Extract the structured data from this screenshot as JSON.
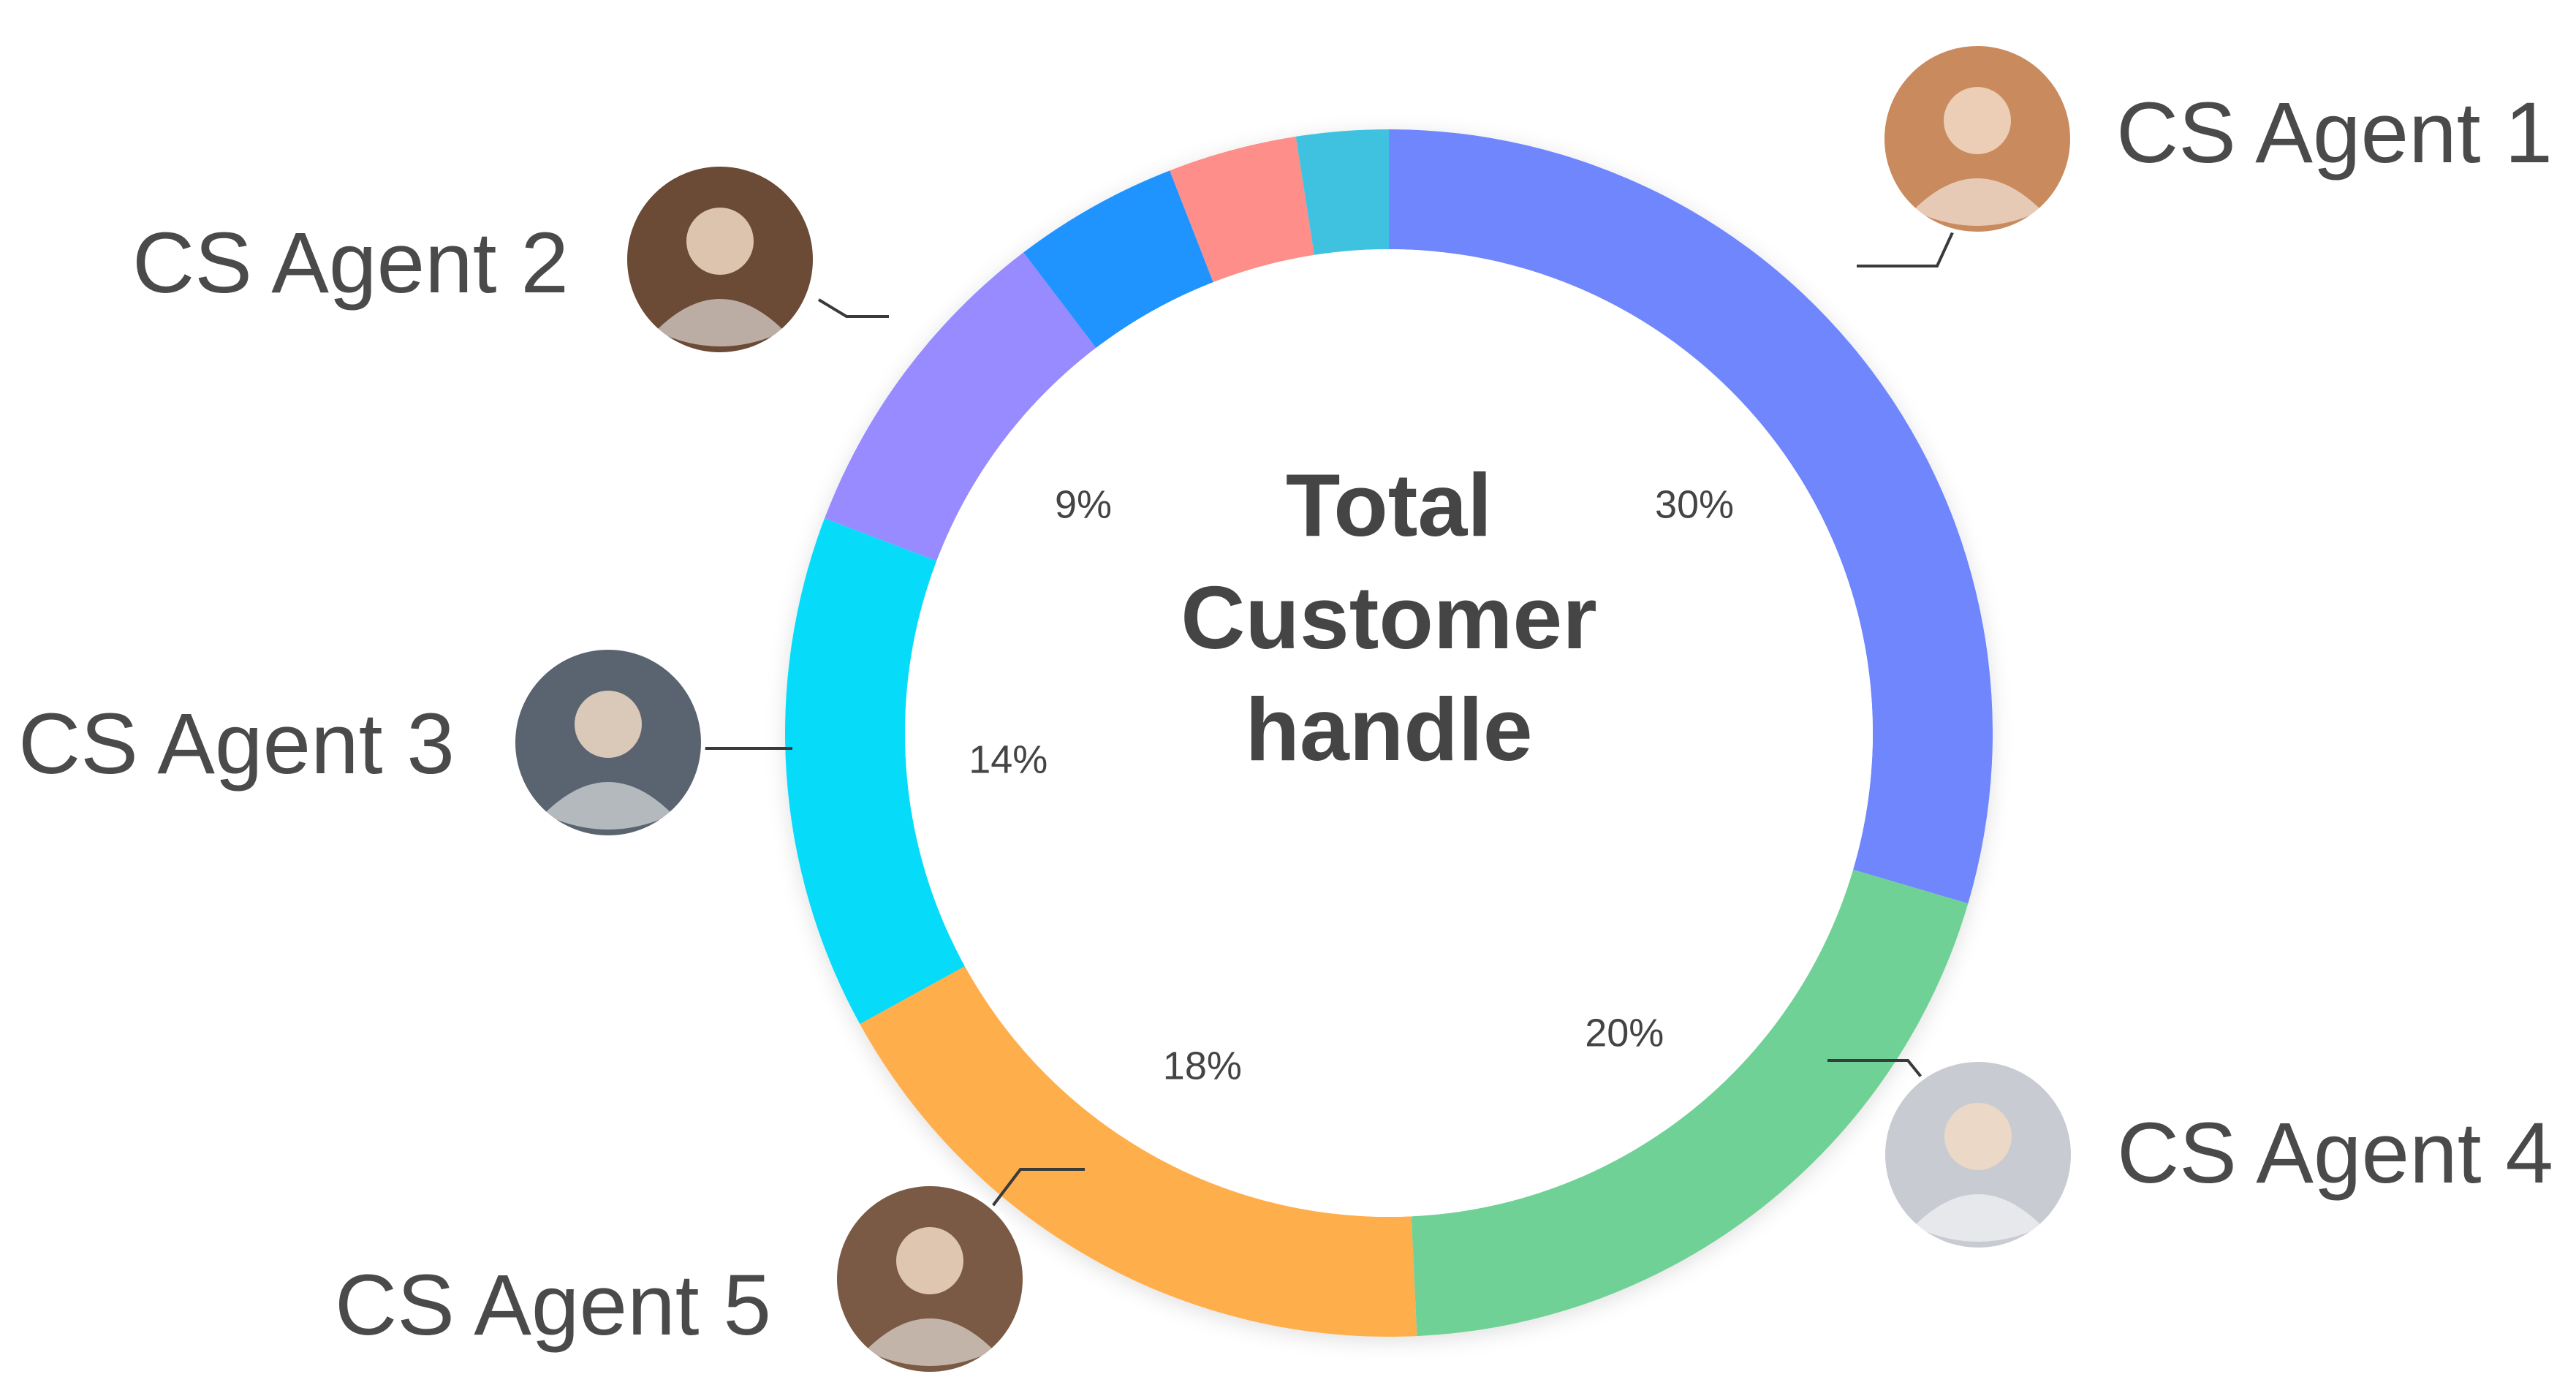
{
  "chart_data": {
    "type": "pie",
    "donut": true,
    "center_title": [
      "Total",
      "Customer",
      "handle"
    ],
    "slices": [
      {
        "name": "CS Agent 1",
        "value": 30,
        "label": "30%",
        "color": "#7086fd"
      },
      {
        "name": "CS Agent 4",
        "value": 20,
        "label": "20%",
        "color": "#6fd195"
      },
      {
        "name": "CS Agent 5",
        "value": 18,
        "label": "18%",
        "color": "#ffae4c"
      },
      {
        "name": "CS Agent 3",
        "value": 14,
        "label": "14%",
        "color": "#07dbfa"
      },
      {
        "name": "CS Agent 2",
        "value": 9,
        "label": "9%",
        "color": "#988aff"
      },
      {
        "name": "",
        "value": 4.5,
        "label": "",
        "color": "#1f94ff"
      },
      {
        "name": "",
        "value": 3.5,
        "label": "",
        "color": "#fd8e89"
      },
      {
        "name": "",
        "value": 2.5,
        "label": "",
        "color": "#3fc2e0"
      }
    ],
    "agents": [
      {
        "label": "CS Agent 1",
        "avatar": "avatar-icon",
        "avatar_color": "#c98a5e"
      },
      {
        "label": "CS Agent 2",
        "avatar": "avatar-icon",
        "avatar_color": "#6b4a36"
      },
      {
        "label": "CS Agent 3",
        "avatar": "avatar-icon",
        "avatar_color": "#5a6470"
      },
      {
        "label": "CS Agent 4",
        "avatar": "avatar-icon",
        "avatar_color": "#c8ccd2"
      },
      {
        "label": "CS Agent 5",
        "avatar": "avatar-icon",
        "avatar_color": "#7a5a44"
      }
    ]
  }
}
